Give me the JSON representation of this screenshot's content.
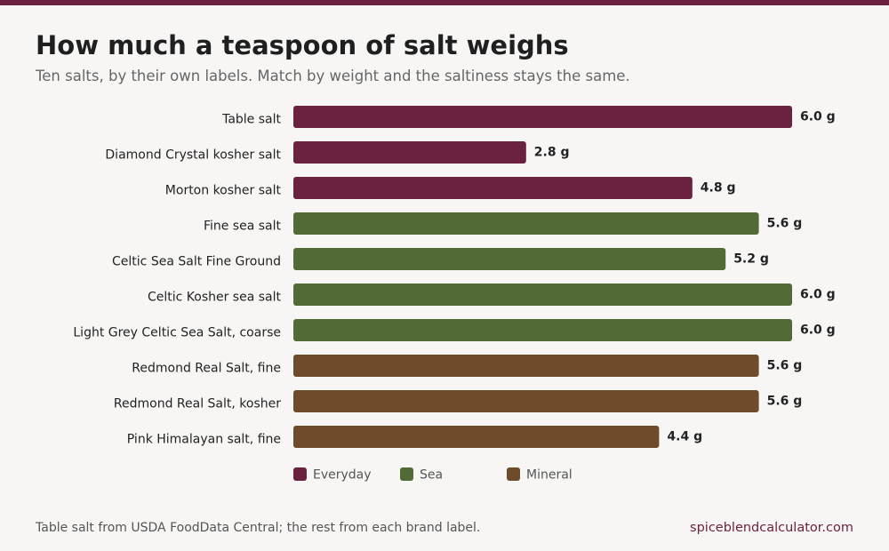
{
  "title": "How much a teaspoon of salt weighs",
  "subtitle": "Ten salts, by their own labels. Match by weight and the saltiness stays the same.",
  "footer": {
    "source": "Table salt from USDA FoodData Central; the rest from each brand label.",
    "site": "spiceblendcalculator.com"
  },
  "colors": {
    "top_bar": "#6b2140",
    "Everyday": "#6b2140",
    "Sea": "#526a36",
    "Mineral": "#6e4b2b"
  },
  "chart_data": {
    "type": "bar",
    "orientation": "horizontal",
    "categories": [
      "Table salt",
      "Diamond Crystal kosher salt",
      "Morton kosher salt",
      "Fine sea salt",
      "Celtic Sea Salt Fine Ground",
      "Celtic Kosher sea salt",
      "Light Grey Celtic Sea Salt, coarse",
      "Redmond Real Salt, fine",
      "Redmond Real Salt, kosher",
      "Pink Himalayan salt, fine"
    ],
    "values": [
      6.0,
      2.8,
      4.8,
      5.6,
      5.2,
      6.0,
      6.0,
      5.6,
      5.6,
      4.4
    ],
    "value_labels": [
      "6.0 g",
      "2.8 g",
      "4.8 g",
      "5.6 g",
      "5.2 g",
      "6.0 g",
      "6.0 g",
      "5.6 g",
      "5.6 g",
      "4.4 g"
    ],
    "groups": [
      "Everyday",
      "Everyday",
      "Everyday",
      "Sea",
      "Sea",
      "Sea",
      "Sea",
      "Mineral",
      "Mineral",
      "Mineral"
    ],
    "legend": [
      "Everyday",
      "Sea",
      "Mineral"
    ],
    "legend_position": "bottom",
    "xlim": [
      0,
      6.0
    ],
    "grid": false
  }
}
